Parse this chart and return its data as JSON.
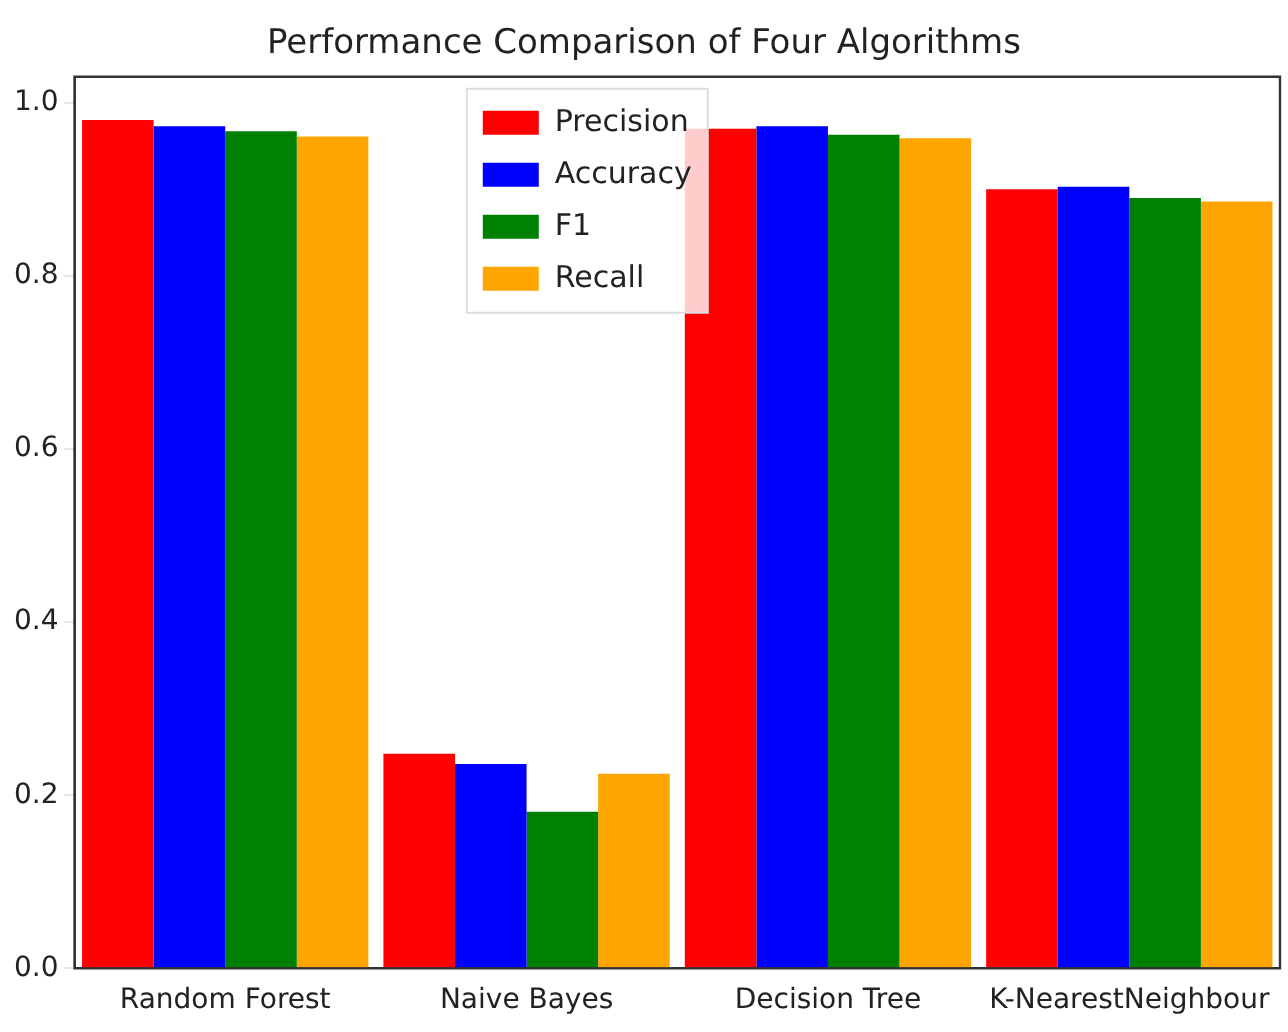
{
  "chart_data": {
    "type": "bar",
    "title": "Performance Comparison of Four Algorithms",
    "categories": [
      "Random Forest",
      "Naive Bayes",
      "Decision Tree",
      "K-NearestNeighbour"
    ],
    "series": [
      {
        "name": "Precision",
        "color": "#ff0000",
        "values": [
          0.98,
          0.248,
          0.97,
          0.9
        ]
      },
      {
        "name": "Accuracy",
        "color": "#0000ff",
        "values": [
          0.973,
          0.236,
          0.973,
          0.903
        ]
      },
      {
        "name": "F1",
        "color": "#008000",
        "values": [
          0.967,
          0.181,
          0.963,
          0.89
        ]
      },
      {
        "name": "Recall",
        "color": "#ffa500",
        "values": [
          0.961,
          0.225,
          0.959,
          0.886
        ]
      }
    ],
    "ylim": [
      0,
      1.03
    ],
    "yticks": [
      {
        "value": 0,
        "label": "0.0"
      },
      {
        "value": 0.2,
        "label": "0.2"
      },
      {
        "value": 0.4,
        "label": "0.4"
      },
      {
        "value": 0.6,
        "label": "0.6"
      },
      {
        "value": 0.8,
        "label": "0.8"
      },
      {
        "value": 1,
        "label": "1.0"
      }
    ],
    "grid": false,
    "legend": "top"
  }
}
